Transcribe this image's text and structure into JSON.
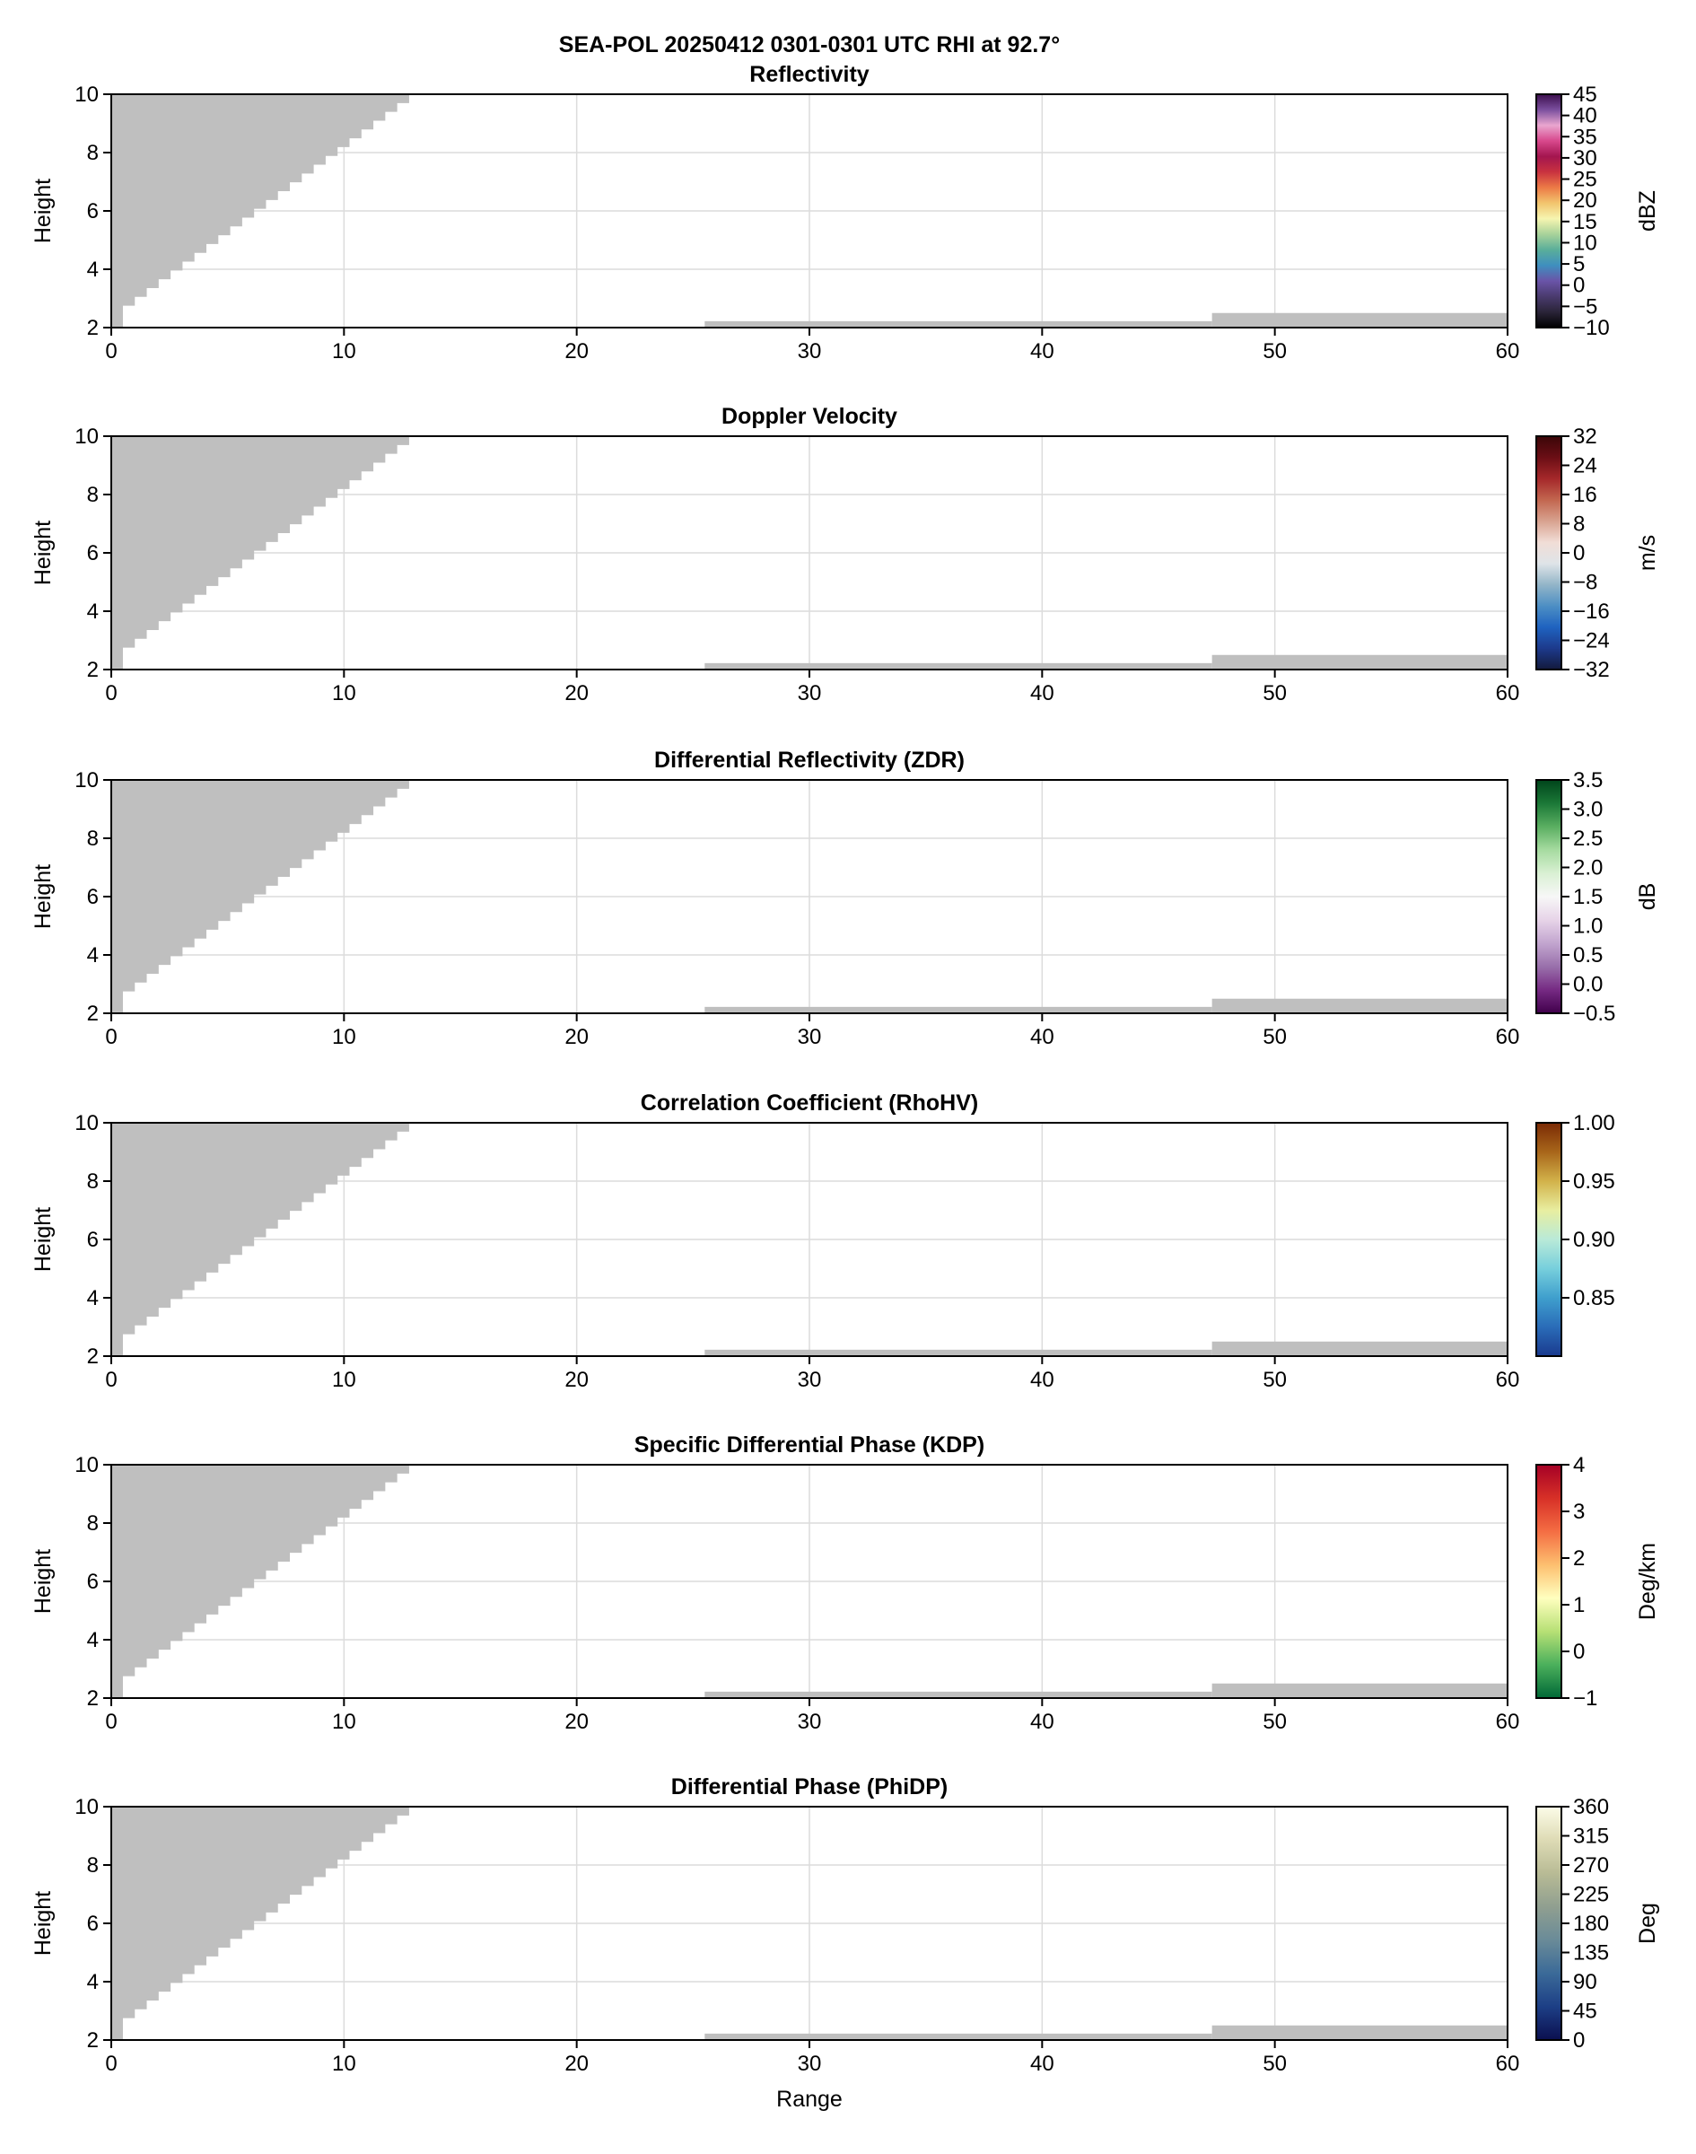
{
  "figure": {
    "suptitle": "SEA-POL 20250412 0301-0301 UTC RHI at 92.7°"
  },
  "chart_data": [
    {
      "type": "heatmap",
      "title": "Reflectivity",
      "xlabel": "",
      "ylabel": "Height",
      "xlim": [
        0,
        60
      ],
      "ylim": [
        2,
        10
      ],
      "xticks": [
        "0",
        "10",
        "20",
        "30",
        "40",
        "50",
        "60"
      ],
      "yticks": [
        "2",
        "4",
        "6",
        "8",
        "10"
      ],
      "grid": true,
      "colorbar": {
        "label": "dBZ",
        "range": [
          -10,
          45
        ],
        "ticks": [
          "−10",
          "−5",
          "0",
          "5",
          "10",
          "15",
          "20",
          "25",
          "30",
          "35",
          "40",
          "45"
        ],
        "colors": [
          "#000000",
          "#2a2438",
          "#4a3b6e",
          "#6a54a8",
          "#3f8fbf",
          "#5aae9a",
          "#a8d29a",
          "#f6f5b0",
          "#f2c56e",
          "#ec7a46",
          "#c9323f",
          "#a3154f",
          "#d8488c",
          "#e9a6cf",
          "#7b4f9e",
          "#3c0f4d"
        ]
      }
    },
    {
      "type": "heatmap",
      "title": "Doppler Velocity",
      "xlabel": "",
      "ylabel": "Height",
      "xlim": [
        0,
        60
      ],
      "ylim": [
        2,
        10
      ],
      "xticks": [
        "0",
        "10",
        "20",
        "30",
        "40",
        "50",
        "60"
      ],
      "yticks": [
        "2",
        "4",
        "6",
        "8",
        "10"
      ],
      "grid": true,
      "colorbar": {
        "label": "m/s",
        "range": [
          -32,
          32
        ],
        "ticks": [
          "−32",
          "−24",
          "−16",
          "−8",
          "0",
          "8",
          "16",
          "24",
          "32"
        ],
        "colors": [
          "#131a3c",
          "#1d3a8c",
          "#1f63c0",
          "#4d8fc4",
          "#93b5c8",
          "#dfe4e8",
          "#f1ddd6",
          "#d8a28f",
          "#c2664f",
          "#a5282a",
          "#6b0e15",
          "#3a0608"
        ]
      }
    },
    {
      "type": "heatmap",
      "title": "Differential Reflectivity (ZDR)",
      "xlabel": "",
      "ylabel": "Height",
      "xlim": [
        0,
        60
      ],
      "ylim": [
        2,
        10
      ],
      "xticks": [
        "0",
        "10",
        "20",
        "30",
        "40",
        "50",
        "60"
      ],
      "yticks": [
        "2",
        "4",
        "6",
        "8",
        "10"
      ],
      "grid": true,
      "colorbar": {
        "label": "dB",
        "range": [
          -0.5,
          3.5
        ],
        "ticks": [
          "−0.5",
          "0.0",
          "0.5",
          "1.0",
          "1.5",
          "2.0",
          "2.5",
          "3.0",
          "3.5"
        ],
        "colors": [
          "#40004b",
          "#762a83",
          "#9970ab",
          "#c2a5cf",
          "#e7d4e8",
          "#f7f7f7",
          "#d9f0d3",
          "#a6dba0",
          "#5aae61",
          "#1b7837",
          "#00441b"
        ]
      }
    },
    {
      "type": "heatmap",
      "title": "Correlation Coefficient (RhoHV)",
      "xlabel": "",
      "ylabel": "Height",
      "xlim": [
        0,
        60
      ],
      "ylim": [
        2,
        10
      ],
      "xticks": [
        "0",
        "10",
        "20",
        "30",
        "40",
        "50",
        "60"
      ],
      "yticks": [
        "2",
        "4",
        "6",
        "8",
        "10"
      ],
      "grid": true,
      "colorbar": {
        "label": "",
        "range": [
          0.8,
          1.0
        ],
        "ticks": [
          "0.85",
          "0.90",
          "0.95",
          "1.00"
        ],
        "tick_values": [
          0.85,
          0.9,
          0.95,
          1.0
        ],
        "colors": [
          "#1a3a8e",
          "#2a6cb8",
          "#3f9fcd",
          "#77cfdc",
          "#b9ead8",
          "#e8eea0",
          "#d2b24a",
          "#a8661a",
          "#7a2a05"
        ]
      }
    },
    {
      "type": "heatmap",
      "title": "Specific Differential Phase (KDP)",
      "xlabel": "",
      "ylabel": "Height",
      "xlim": [
        0,
        60
      ],
      "ylim": [
        2,
        10
      ],
      "xticks": [
        "0",
        "10",
        "20",
        "30",
        "40",
        "50",
        "60"
      ],
      "yticks": [
        "2",
        "4",
        "6",
        "8",
        "10"
      ],
      "grid": true,
      "colorbar": {
        "label": "Deg/km",
        "range": [
          -1,
          4
        ],
        "ticks": [
          "−1",
          "0",
          "1",
          "2",
          "3",
          "4"
        ],
        "colors": [
          "#006837",
          "#4bb05c",
          "#b7e075",
          "#ffffbf",
          "#fdbf6f",
          "#f46d43",
          "#d73027",
          "#a50026"
        ]
      }
    },
    {
      "type": "heatmap",
      "title": "Differential Phase (PhiDP)",
      "xlabel": "Range",
      "ylabel": "Height",
      "xlim": [
        0,
        60
      ],
      "ylim": [
        2,
        10
      ],
      "xticks": [
        "0",
        "10",
        "20",
        "30",
        "40",
        "50",
        "60"
      ],
      "yticks": [
        "2",
        "4",
        "6",
        "8",
        "10"
      ],
      "grid": true,
      "colorbar": {
        "label": "Deg",
        "range": [
          0,
          360
        ],
        "ticks": [
          "0",
          "45",
          "90",
          "135",
          "180",
          "225",
          "270",
          "315",
          "360"
        ],
        "colors": [
          "#0b0f4f",
          "#1d3f86",
          "#3b6a98",
          "#6a8b98",
          "#909f90",
          "#b8bb95",
          "#dedbb5",
          "#fcfce8"
        ]
      }
    }
  ],
  "masked_regions": {
    "color": "#bfbfbf",
    "upper_edge": [
      [
        0,
        2
      ],
      [
        0.5,
        2.75
      ],
      [
        12.8,
        10
      ]
    ],
    "lower_blocks": [
      {
        "x": [
          25.5,
          47.3
        ],
        "y": [
          2,
          2.22
        ]
      },
      {
        "x": [
          47.3,
          60
        ],
        "y": [
          2,
          2.5
        ]
      }
    ]
  }
}
